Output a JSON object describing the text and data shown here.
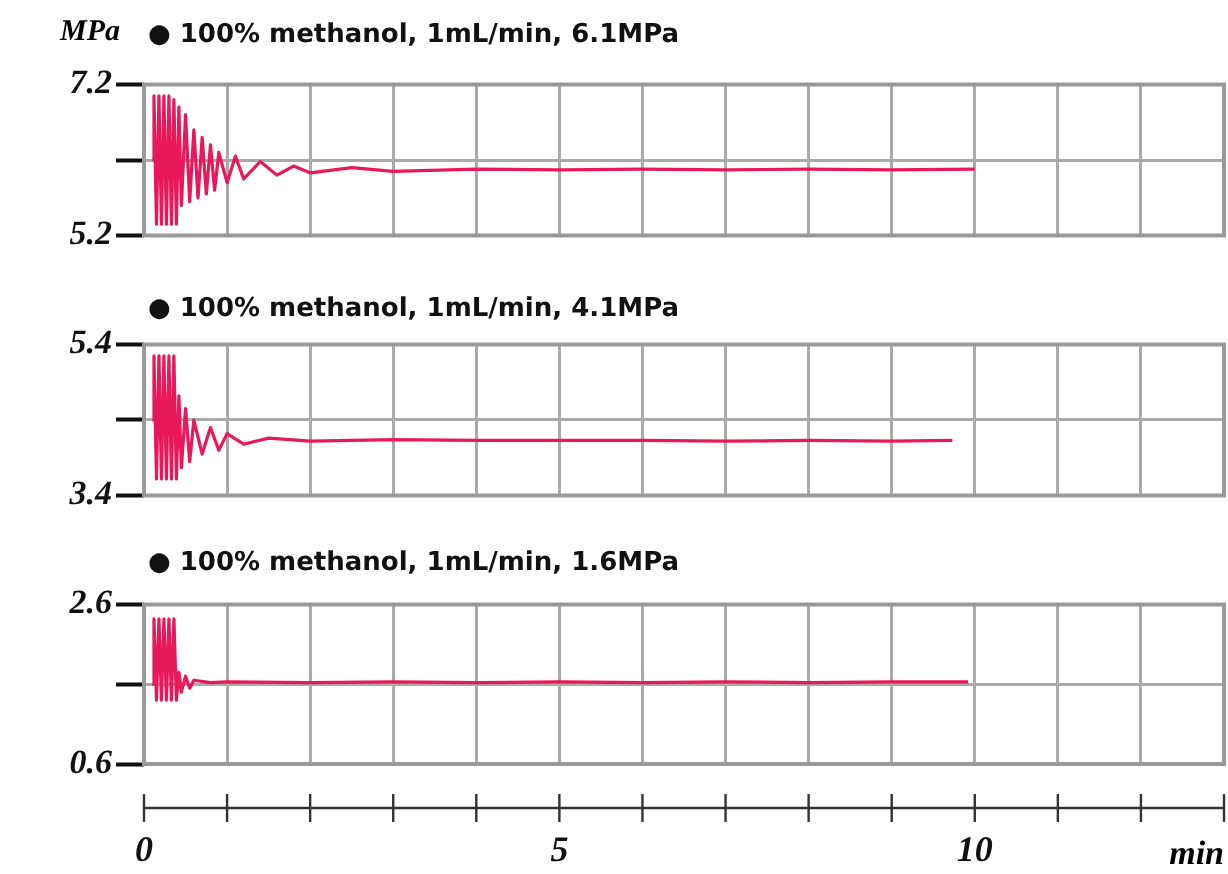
{
  "chart_data": [
    {
      "type": "line",
      "title": "● 100% methanol, 1mL/min, 6.1MPa",
      "ylabel": "MPa",
      "xlim": [
        0,
        13
      ],
      "xticks": [
        0,
        1,
        2,
        3,
        4,
        5,
        6,
        7,
        8,
        9,
        10,
        11,
        12,
        13
      ],
      "ylim": [
        5.2,
        7.2
      ],
      "yticks": [
        5.2,
        {
          "value": 6.2,
          "label": null
        },
        7.2
      ],
      "grid": true,
      "tick_labels": "y",
      "series": [
        {
          "color": "#e8185a",
          "x": [
            0.1,
            0.12,
            0.15,
            0.18,
            0.21,
            0.24,
            0.27,
            0.3,
            0.33,
            0.36,
            0.39,
            0.42,
            0.45,
            0.5,
            0.55,
            0.6,
            0.65,
            0.7,
            0.75,
            0.8,
            0.85,
            0.9,
            1.0,
            1.1,
            1.2,
            1.4,
            1.6,
            1.8,
            2.0,
            2.5,
            3,
            4,
            5,
            6,
            7,
            8,
            9,
            10
          ],
          "values": [
            6.2,
            7.05,
            5.35,
            7.05,
            5.35,
            7.05,
            5.35,
            7.05,
            5.35,
            7.0,
            5.35,
            6.9,
            5.6,
            6.8,
            5.65,
            6.6,
            5.7,
            6.5,
            5.75,
            6.4,
            5.8,
            6.3,
            5.9,
            6.25,
            5.95,
            6.18,
            6.0,
            6.12,
            6.03,
            6.1,
            6.05,
            6.08,
            6.07,
            6.08,
            6.07,
            6.08,
            6.07,
            6.08
          ]
        }
      ]
    },
    {
      "type": "line",
      "title": "● 100% methanol, 1mL/min, 4.1MPa",
      "xlim": [
        0,
        13
      ],
      "xticks": [
        0,
        1,
        2,
        3,
        4,
        5,
        6,
        7,
        8,
        9,
        10,
        11,
        12,
        13
      ],
      "ylim": [
        3.4,
        5.4
      ],
      "yticks": [
        3.4,
        {
          "value": 4.4,
          "label": null
        },
        5.4
      ],
      "grid": true,
      "tick_labels": "y",
      "series": [
        {
          "color": "#e8185a",
          "x": [
            0.1,
            0.12,
            0.15,
            0.18,
            0.21,
            0.24,
            0.27,
            0.3,
            0.33,
            0.36,
            0.39,
            0.42,
            0.45,
            0.5,
            0.55,
            0.6,
            0.7,
            0.8,
            0.9,
            1.0,
            1.2,
            1.5,
            2,
            3,
            4,
            5,
            6,
            7,
            8,
            9,
            9.73
          ],
          "values": [
            4.4,
            5.25,
            3.62,
            5.25,
            3.62,
            5.25,
            3.62,
            5.25,
            3.62,
            5.25,
            3.62,
            4.72,
            3.77,
            4.55,
            3.85,
            4.4,
            3.95,
            4.3,
            4.0,
            4.22,
            4.08,
            4.16,
            4.12,
            4.14,
            4.13,
            4.13,
            4.13,
            4.12,
            4.13,
            4.12,
            4.13
          ]
        }
      ]
    },
    {
      "type": "line",
      "title": "● 100% methanol, 1mL/min, 1.6MPa",
      "xlabel": "min",
      "xlim": [
        0,
        13
      ],
      "xticks": [
        0,
        {
          "value": 1,
          "label": null
        },
        {
          "value": 2,
          "label": null
        },
        {
          "value": 3,
          "label": null
        },
        {
          "value": 4,
          "label": null
        },
        5,
        {
          "value": 6,
          "label": null
        },
        {
          "value": 7,
          "label": null
        },
        {
          "value": 8,
          "label": null
        },
        {
          "value": 9,
          "label": null
        },
        10,
        {
          "value": 11,
          "label": null
        },
        {
          "value": 12,
          "label": null
        },
        {
          "value": 13,
          "label": null
        }
      ],
      "ylim": [
        0.6,
        2.6
      ],
      "yticks": [
        0.6,
        {
          "value": 1.6,
          "label": null
        },
        2.6
      ],
      "grid": true,
      "series": [
        {
          "color": "#e8185a",
          "x": [
            0.1,
            0.12,
            0.15,
            0.18,
            0.21,
            0.24,
            0.27,
            0.3,
            0.33,
            0.36,
            0.39,
            0.42,
            0.45,
            0.5,
            0.55,
            0.6,
            0.8,
            1,
            2,
            3,
            4,
            5,
            6,
            7,
            8,
            9,
            9.92
          ],
          "values": [
            1.6,
            2.42,
            1.4,
            2.42,
            1.4,
            2.42,
            1.4,
            2.42,
            1.4,
            2.42,
            1.4,
            1.75,
            1.5,
            1.7,
            1.55,
            1.65,
            1.62,
            1.63,
            1.62,
            1.63,
            1.62,
            1.63,
            1.62,
            1.63,
            1.62,
            1.63,
            1.63
          ]
        }
      ]
    }
  ]
}
